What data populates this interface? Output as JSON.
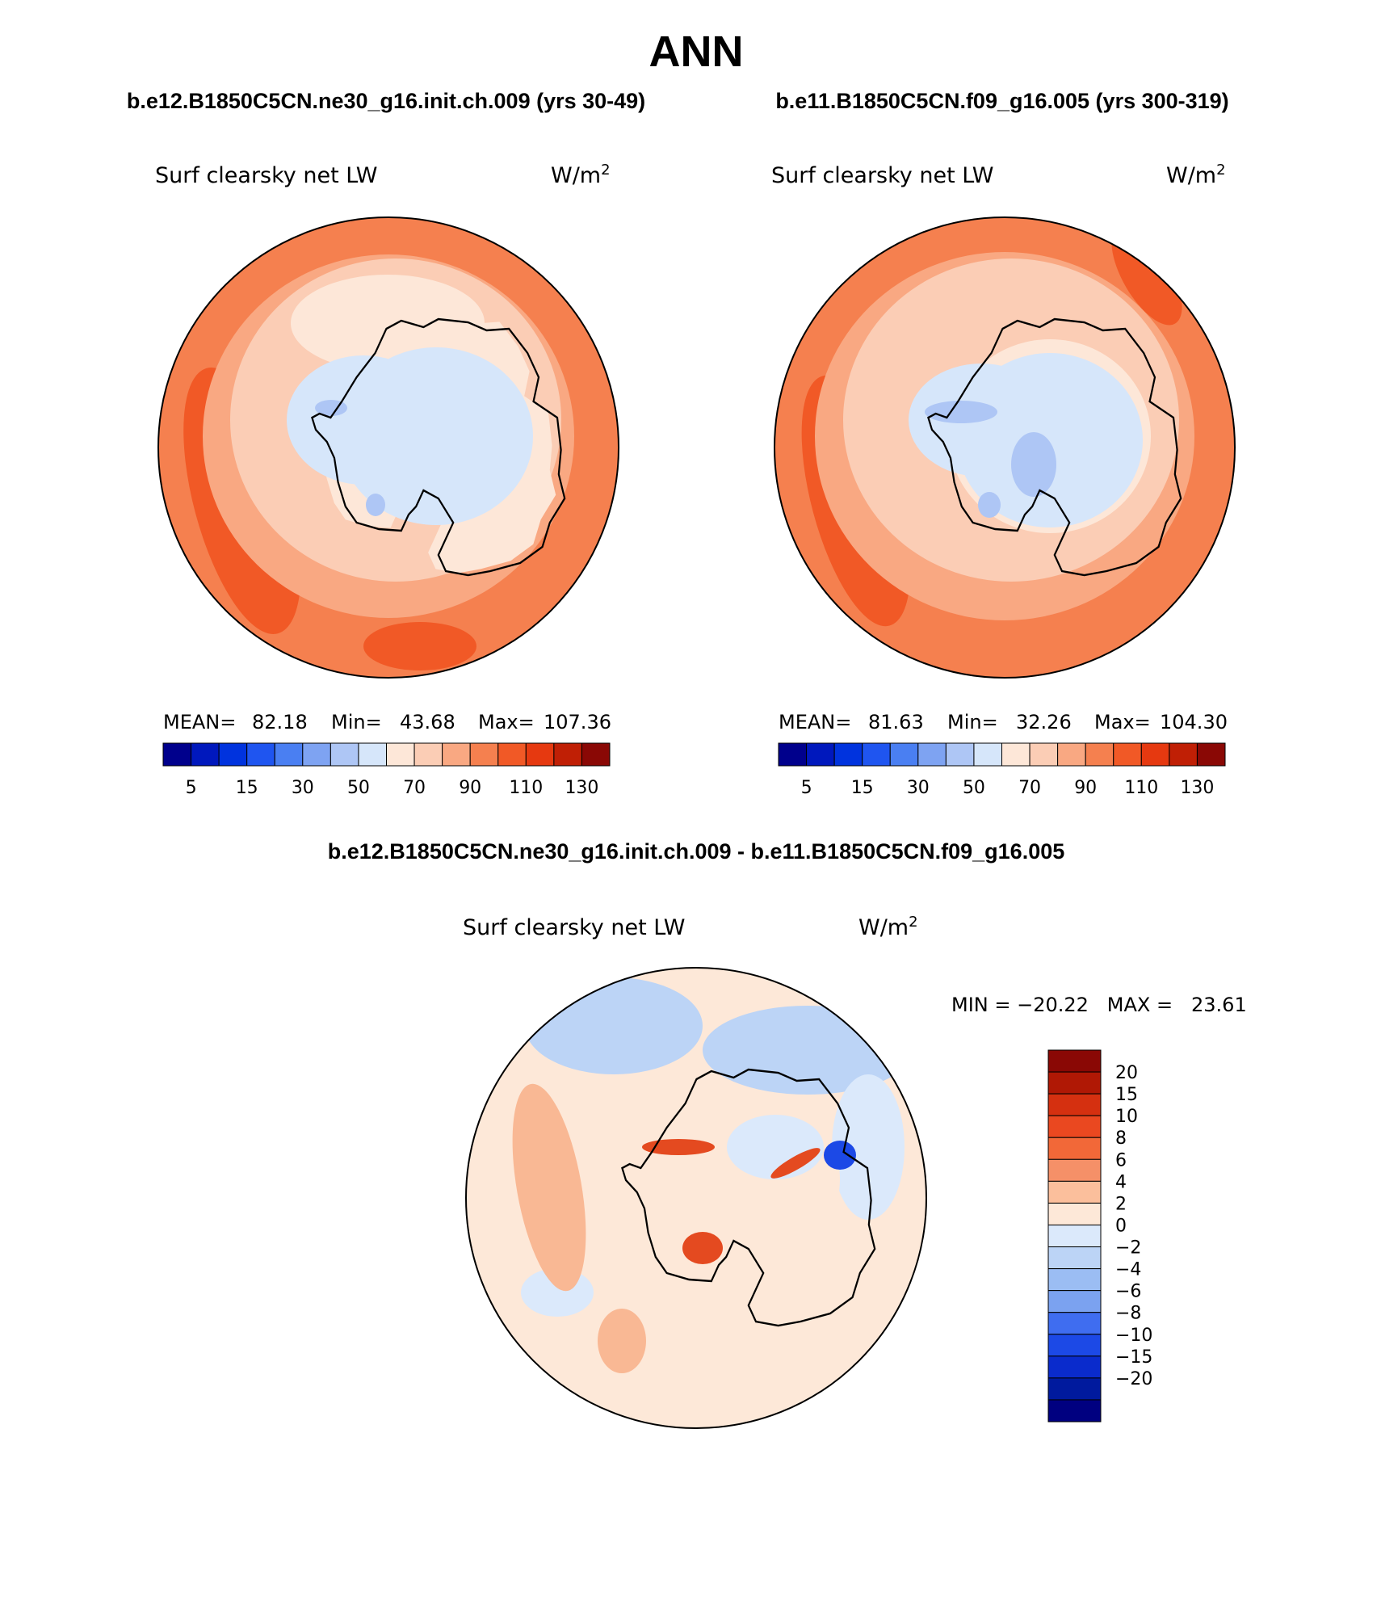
{
  "page": {
    "title": "ANN",
    "diff_title": "b.e12.B1850C5CN.ne30_g16.init.ch.009 - b.e11.B1850C5CN.f09_g16.005"
  },
  "panels": [
    {
      "case_title": "b.e12.B1850C5CN.ne30_g16.init.ch.009 (yrs 30-49)",
      "variable": "Surf clearsky net LW",
      "units_base": "W/m",
      "units_exp": "2",
      "stats": {
        "mean_label": "MEAN=",
        "mean": "82.18",
        "min_label": "Min=",
        "min": "43.68",
        "max_label": "Max=",
        "max": "107.36"
      }
    },
    {
      "case_title": "b.e11.B1850C5CN.f09_g16.005 (yrs 300-319)",
      "variable": "Surf clearsky net LW",
      "units_base": "W/m",
      "units_exp": "2",
      "stats": {
        "mean_label": "MEAN=",
        "mean": "81.63",
        "min_label": "Min=",
        "min": "32.26",
        "max_label": "Max=",
        "max": "104.30"
      }
    }
  ],
  "field_colorbar": {
    "colors": [
      "#00008c",
      "#0018bd",
      "#0033de",
      "#1f55f0",
      "#4a7ff2",
      "#7ea3f2",
      "#aec6f5",
      "#d6e6fa",
      "#fde7d8",
      "#fbcdb5",
      "#f9a882",
      "#f5804f",
      "#f15926",
      "#e63910",
      "#c01f05",
      "#8a0805"
    ],
    "tick_labels": [
      "5",
      "15",
      "30",
      "50",
      "70",
      "90",
      "110",
      "130"
    ]
  },
  "diff_panel": {
    "variable": "Surf clearsky net LW",
    "units_base": "W/m",
    "units_exp": "2",
    "stats_text": "MIN = −20.22   MAX =   23.61"
  },
  "diff_colorbar": {
    "colors_top_to_bottom": [
      "#8a0805",
      "#b01805",
      "#d53010",
      "#ea4820",
      "#f26838",
      "#f59068",
      "#fbbf9c",
      "#fde8d8",
      "#dbe9fb",
      "#bcd4f6",
      "#9bbdf3",
      "#7ba2f0",
      "#3f6df0",
      "#1c49e6",
      "#0a2bcc",
      "#001a9e",
      "#000080"
    ],
    "tick_labels": [
      "20",
      "15",
      "10",
      "8",
      "6",
      "4",
      "2",
      "0",
      "−2",
      "−4",
      "−6",
      "−8",
      "−10",
      "−15",
      "−20"
    ]
  },
  "map_colors": {
    "ocean_outer": "#f5804f",
    "ocean_band": "#f15926",
    "ocean_mid": "#f9a882",
    "ocean_inner": "#fbcdb5",
    "coast_shelf": "#fde7d8",
    "ice_sheet": "#d6e6fa",
    "ice_low": "#aec6f5",
    "diff_base": "#fde8d8",
    "diff_blue": "#bcd4f6",
    "diff_red": "#f59068",
    "coastline": "#000000"
  }
}
